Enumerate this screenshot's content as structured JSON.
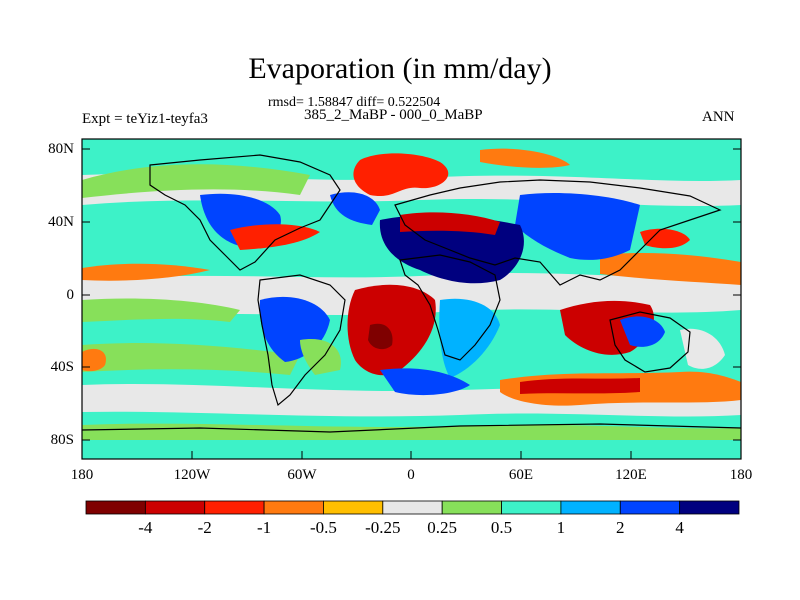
{
  "title": "Evaporation (in mm/day)",
  "stats": "rmsd= 1.58847 diff= 0.522504",
  "subtitle": "385_2_MaBP - 000_0_MaBP",
  "left_label": "Expt = teYiz1-teyfa3",
  "right_label": "ANN",
  "lat_ticks": [
    "80N",
    "40N",
    "0",
    "40S",
    "80S"
  ],
  "lon_ticks": [
    "180",
    "120W",
    "60W",
    "0",
    "60E",
    "120E",
    "180"
  ],
  "colorbar": {
    "colors": [
      "#7f0000",
      "#cc0000",
      "#ff2000",
      "#ff7a10",
      "#ffbf00",
      "#e8e8e8",
      "#87e05a",
      "#3df2c8",
      "#00b2ff",
      "#0044ff",
      "#00007f"
    ],
    "labels": [
      "-4",
      "-2",
      "-1",
      "-0.5",
      "-0.25",
      "0.25",
      "0.5",
      "1",
      "2",
      "4"
    ]
  }
}
